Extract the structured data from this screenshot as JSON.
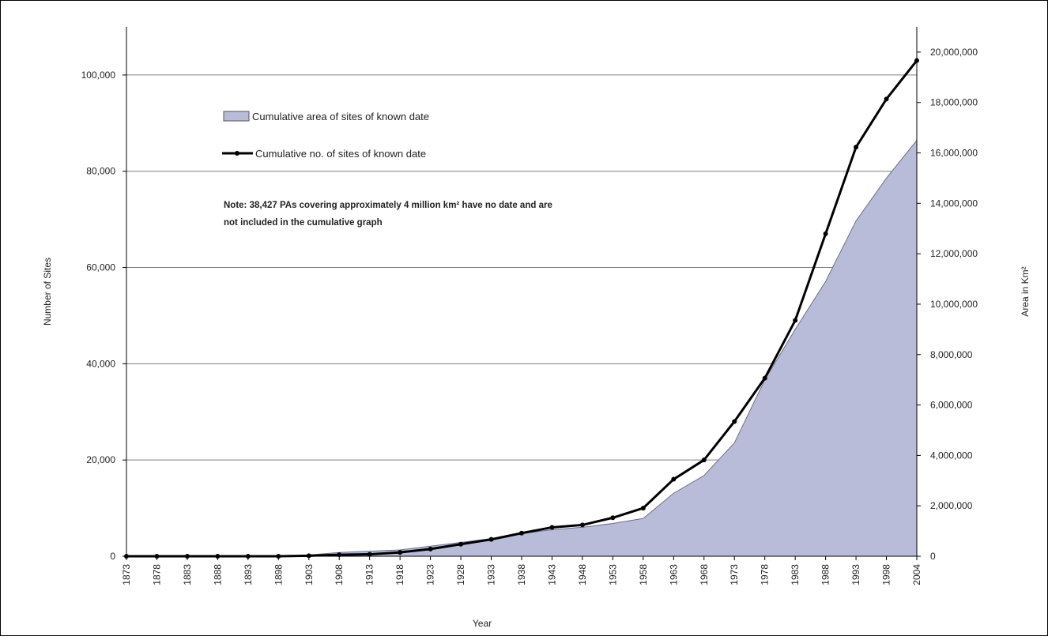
{
  "chart_data": {
    "type": "area",
    "title": "",
    "xlabel": "Year",
    "ylabel_left": "Number of Sites",
    "ylabel_right": "Area in Km²",
    "categories": [
      "1873",
      "1878",
      "1883",
      "1888",
      "1893",
      "1898",
      "1903",
      "1908",
      "1913",
      "1918",
      "1923",
      "1928",
      "1933",
      "1938",
      "1943",
      "1948",
      "1953",
      "1958",
      "1963",
      "1968",
      "1973",
      "1978",
      "1983",
      "1988",
      "1993",
      "1998",
      "2004"
    ],
    "y_left": {
      "range": [
        0,
        110000
      ],
      "ticks": [
        "0",
        "20,000",
        "40,000",
        "60,000",
        "80,000",
        "100,000"
      ],
      "tick_values": [
        0,
        20000,
        40000,
        60000,
        80000,
        100000
      ]
    },
    "y_right": {
      "range": [
        0,
        21000000
      ],
      "ticks": [
        "0",
        "2,000,000",
        "4,000,000",
        "6,000,000",
        "8,000,000",
        "10,000,000",
        "12,000,000",
        "14,000,000",
        "16,000,000",
        "18,000,000",
        "20,000,000"
      ],
      "tick_values": [
        0,
        2000000,
        4000000,
        6000000,
        8000000,
        10000000,
        12000000,
        14000000,
        16000000,
        18000000,
        20000000
      ]
    },
    "series": [
      {
        "name": "Cumulative area of sites of known date",
        "kind": "area",
        "axis": "right",
        "color": "#b8bcd9",
        "values": [
          0,
          0,
          0,
          0,
          0,
          0,
          50000,
          150000,
          200000,
          250000,
          400000,
          550000,
          700000,
          900000,
          1050000,
          1150000,
          1300000,
          1500000,
          2500000,
          3200000,
          4500000,
          7000000,
          9000000,
          10900000,
          13300000,
          15000000,
          16500000
        ]
      },
      {
        "name": "Cumulative no. of sites of known date",
        "kind": "line",
        "axis": "left",
        "color": "#000000",
        "values": [
          0,
          0,
          0,
          0,
          0,
          0,
          100,
          300,
          400,
          800,
          1500,
          2500,
          3500,
          4800,
          6000,
          6500,
          8000,
          10000,
          16000,
          20000,
          28000,
          37000,
          49000,
          67000,
          85000,
          95000,
          103000
        ]
      }
    ],
    "legend": {
      "position": "top-left-inside"
    },
    "note": "Note: 38,427 PAs covering approximately 4 million km² have no date and are not included in the cumulative graph",
    "grid": {
      "horizontal": true,
      "vertical": false
    },
    "colors": {
      "area_fill": "#b8bcd9",
      "area_stroke": "#6a6f8f",
      "line": "#000000",
      "grid": "#7f7f7f",
      "frame": "#000000"
    }
  }
}
